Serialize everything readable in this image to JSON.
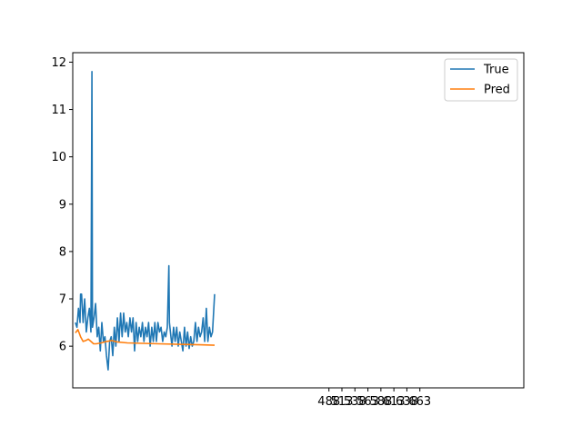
{
  "chart_data": {
    "type": "line",
    "title": "",
    "xlabel": "",
    "ylabel": "",
    "xlim": [
      -5,
      863
    ],
    "ylim": [
      5.12,
      12.2
    ],
    "x_ticks": [
      488,
      513,
      538,
      563,
      588,
      613,
      638,
      663
    ],
    "x_tick_labels": [
      "488",
      "513",
      "538",
      "563",
      "588",
      "613",
      "638",
      "663"
    ],
    "y_ticks": [
      6,
      7,
      8,
      9,
      10,
      11,
      12
    ],
    "y_tick_labels": [
      "6",
      "7",
      "8",
      "9",
      "10",
      "11",
      "12"
    ],
    "grid": false,
    "legend_position": "top-right",
    "colors": {
      "True": "#1f77b4",
      "Pred": "#ff7f0e",
      "axes": "#000000"
    },
    "series": [
      {
        "name": "True",
        "x": [
          0,
          3,
          6,
          9,
          10,
          12,
          15,
          18,
          21,
          24,
          27,
          30,
          32,
          33,
          36,
          39,
          42,
          45,
          48,
          51,
          54,
          57,
          60,
          63,
          66,
          69,
          72,
          75,
          78,
          81,
          84,
          87,
          90,
          93,
          96,
          99,
          102,
          105,
          108,
          111,
          114,
          117,
          120,
          123,
          126,
          129,
          132,
          135,
          138,
          141,
          144,
          147,
          150,
          153,
          156,
          159,
          162,
          165,
          168,
          171,
          174,
          177,
          180,
          181,
          183,
          186,
          189,
          192,
          195,
          198,
          201,
          204,
          207,
          210,
          213,
          216,
          219,
          222,
          225,
          228,
          231,
          234,
          237,
          240,
          243,
          246,
          249,
          252,
          255,
          258,
          261,
          264,
          268
        ],
        "values": [
          6.5,
          6.4,
          6.8,
          6.5,
          7.1,
          7.1,
          6.5,
          7.0,
          6.3,
          6.6,
          6.8,
          6.3,
          11.8,
          6.4,
          6.6,
          6.9,
          6.2,
          6.4,
          5.9,
          6.5,
          6.1,
          6.2,
          5.8,
          5.5,
          6.1,
          6.2,
          5.8,
          6.4,
          6.0,
          6.6,
          6.1,
          6.7,
          6.2,
          6.7,
          6.3,
          6.5,
          6.2,
          6.6,
          6.3,
          6.6,
          5.9,
          6.5,
          6.1,
          6.4,
          6.2,
          6.5,
          6.1,
          6.4,
          6.2,
          6.5,
          6.0,
          6.4,
          6.1,
          6.5,
          6.1,
          6.5,
          6.3,
          6.4,
          6.1,
          6.3,
          6.2,
          6.4,
          7.7,
          6.5,
          6.3,
          6.0,
          6.4,
          6.1,
          6.4,
          6.0,
          6.3,
          6.1,
          5.9,
          6.4,
          6.0,
          6.3,
          5.95,
          6.2,
          6.0,
          6.1,
          6.5,
          6.1,
          6.4,
          6.2,
          6.3,
          6.6,
          6.1,
          6.8,
          6.1,
          6.4,
          6.2,
          6.3,
          7.1
        ]
      },
      {
        "name": "Pred",
        "x": [
          0,
          5,
          10,
          15,
          20,
          25,
          30,
          35,
          40,
          50,
          60,
          70,
          80,
          100,
          130,
          160,
          200,
          240,
          268
        ],
        "values": [
          6.28,
          6.35,
          6.2,
          6.1,
          6.12,
          6.15,
          6.1,
          6.05,
          6.05,
          6.07,
          6.1,
          6.12,
          6.09,
          6.07,
          6.06,
          6.05,
          6.04,
          6.03,
          6.02
        ]
      }
    ]
  }
}
